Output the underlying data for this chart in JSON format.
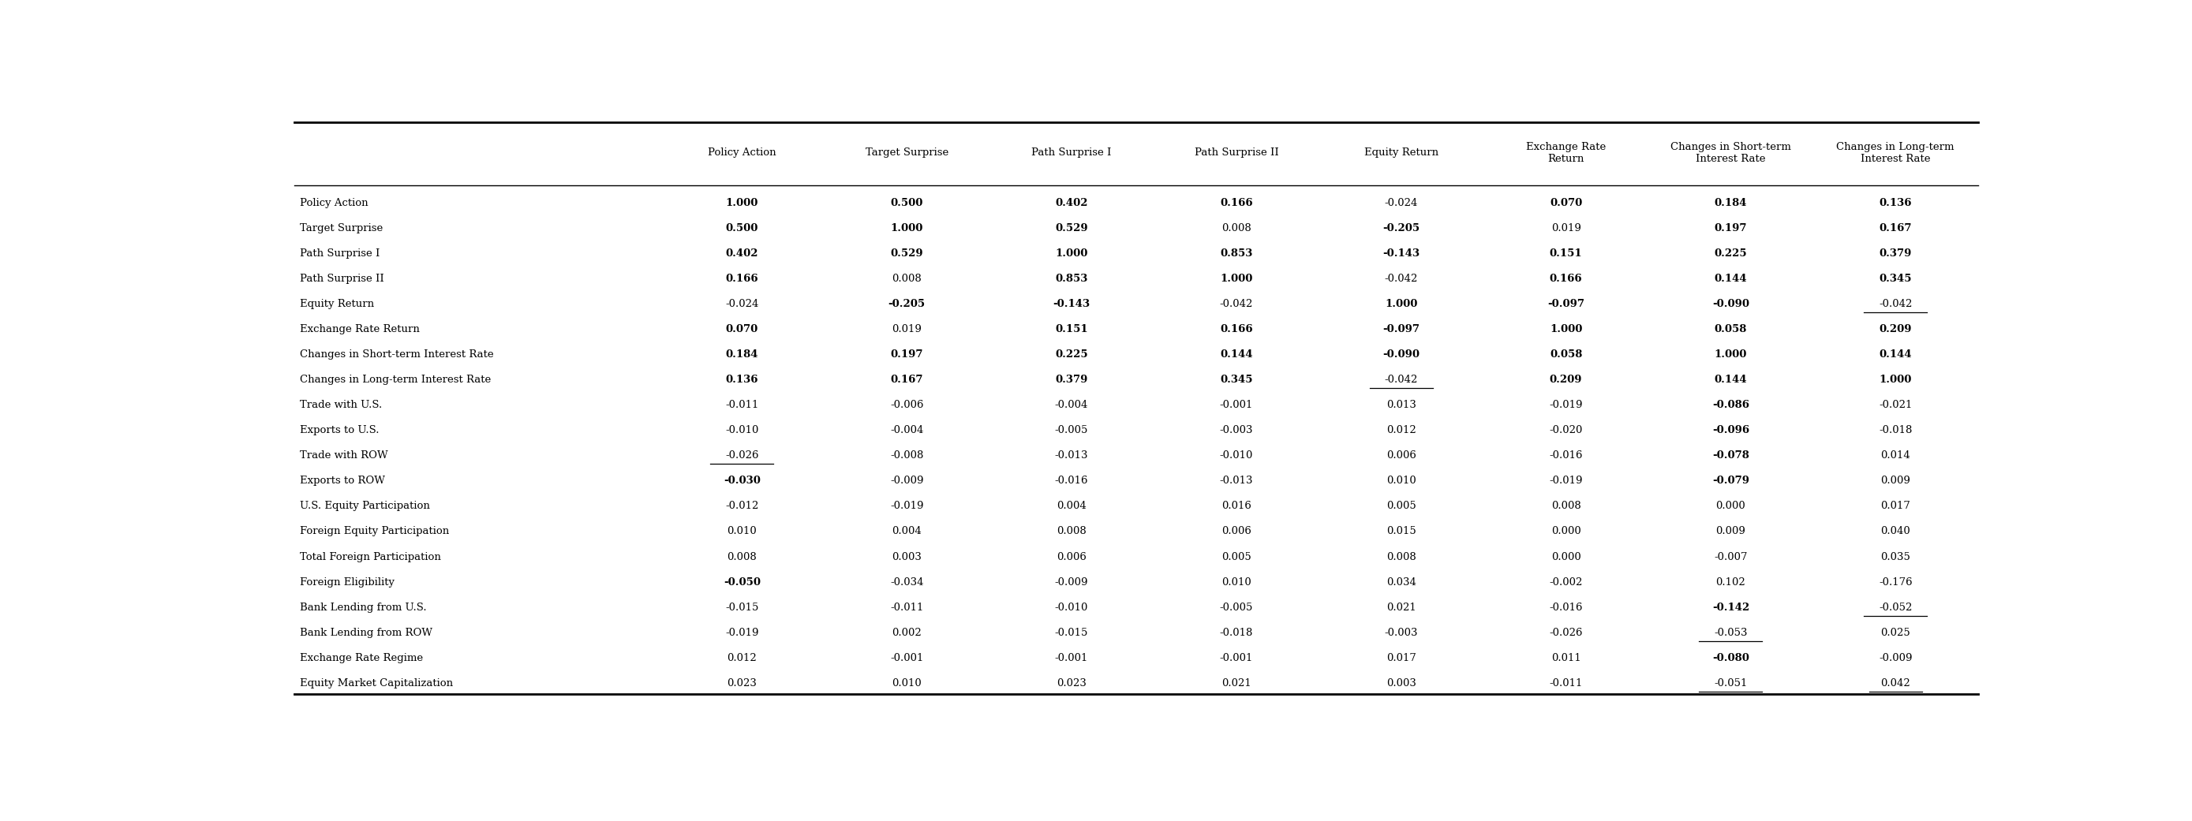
{
  "col_headers": [
    "Policy Action",
    "Target Surprise",
    "Path Surprise I",
    "Path Surprise II",
    "Equity Return",
    "Exchange Rate\nReturn",
    "Changes in Short-term\nInterest Rate",
    "Changes in Long-term\nInterest Rate"
  ],
  "row_labels": [
    "Policy Action",
    "Target Surprise",
    "Path Surprise I",
    "Path Surprise II",
    "Equity Return",
    "Exchange Rate Return",
    "Changes in Short-term Interest Rate",
    "Changes in Long-term Interest Rate",
    "Trade with U.S.",
    "Exports to U.S.",
    "Trade with ROW",
    "Exports to ROW",
    "U.S. Equity Participation",
    "Foreign Equity Participation",
    "Total Foreign Participation",
    "Foreign Eligibility",
    "Bank Lending from U.S.",
    "Bank Lending from ROW",
    "Exchange Rate Regime",
    "Equity Market Capitalization"
  ],
  "values": [
    [
      "1.000",
      "0.500",
      "0.402",
      "0.166",
      "-0.024",
      "0.070",
      "0.184",
      "0.136"
    ],
    [
      "0.500",
      "1.000",
      "0.529",
      "0.008",
      "-0.205",
      "0.019",
      "0.197",
      "0.167"
    ],
    [
      "0.402",
      "0.529",
      "1.000",
      "0.853",
      "-0.143",
      "0.151",
      "0.225",
      "0.379"
    ],
    [
      "0.166",
      "0.008",
      "0.853",
      "1.000",
      "-0.042",
      "0.166",
      "0.144",
      "0.345"
    ],
    [
      "-0.024",
      "-0.205",
      "-0.143",
      "-0.042",
      "1.000",
      "-0.097",
      "-0.090",
      "-0.042"
    ],
    [
      "0.070",
      "0.019",
      "0.151",
      "0.166",
      "-0.097",
      "1.000",
      "0.058",
      "0.209"
    ],
    [
      "0.184",
      "0.197",
      "0.225",
      "0.144",
      "-0.090",
      "0.058",
      "1.000",
      "0.144"
    ],
    [
      "0.136",
      "0.167",
      "0.379",
      "0.345",
      "-0.042",
      "0.209",
      "0.144",
      "1.000"
    ],
    [
      "-0.011",
      "-0.006",
      "-0.004",
      "-0.001",
      "0.013",
      "-0.019",
      "-0.086",
      "-0.021"
    ],
    [
      "-0.010",
      "-0.004",
      "-0.005",
      "-0.003",
      "0.012",
      "-0.020",
      "-0.096",
      "-0.018"
    ],
    [
      "-0.026",
      "-0.008",
      "-0.013",
      "-0.010",
      "0.006",
      "-0.016",
      "-0.078",
      "0.014"
    ],
    [
      "-0.030",
      "-0.009",
      "-0.016",
      "-0.013",
      "0.010",
      "-0.019",
      "-0.079",
      "0.009"
    ],
    [
      "-0.012",
      "-0.019",
      "0.004",
      "0.016",
      "0.005",
      "0.008",
      "0.000",
      "0.017"
    ],
    [
      "0.010",
      "0.004",
      "0.008",
      "0.006",
      "0.015",
      "0.000",
      "0.009",
      "0.040"
    ],
    [
      "0.008",
      "0.003",
      "0.006",
      "0.005",
      "0.008",
      "0.000",
      "-0.007",
      "0.035"
    ],
    [
      "-0.050",
      "-0.034",
      "-0.009",
      "0.010",
      "0.034",
      "-0.002",
      "0.102",
      "-0.176"
    ],
    [
      "-0.015",
      "-0.011",
      "-0.010",
      "-0.005",
      "0.021",
      "-0.016",
      "-0.142",
      "-0.052"
    ],
    [
      "-0.019",
      "0.002",
      "-0.015",
      "-0.018",
      "-0.003",
      "-0.026",
      "-0.053",
      "0.025"
    ],
    [
      "0.012",
      "-0.001",
      "-0.001",
      "-0.001",
      "0.017",
      "0.011",
      "-0.080",
      "-0.009"
    ],
    [
      "0.023",
      "0.010",
      "0.023",
      "0.021",
      "0.003",
      "-0.011",
      "-0.051",
      "0.042"
    ]
  ],
  "bold": [
    [
      true,
      true,
      true,
      true,
      false,
      true,
      true,
      true
    ],
    [
      true,
      true,
      true,
      false,
      true,
      false,
      true,
      true
    ],
    [
      true,
      true,
      true,
      true,
      true,
      true,
      true,
      true
    ],
    [
      true,
      false,
      true,
      true,
      false,
      true,
      true,
      true
    ],
    [
      false,
      true,
      true,
      false,
      true,
      true,
      true,
      false
    ],
    [
      true,
      false,
      true,
      true,
      true,
      true,
      true,
      true
    ],
    [
      true,
      true,
      true,
      true,
      true,
      true,
      true,
      true
    ],
    [
      true,
      true,
      true,
      true,
      false,
      true,
      true,
      true
    ],
    [
      false,
      false,
      false,
      false,
      false,
      false,
      true,
      false
    ],
    [
      false,
      false,
      false,
      false,
      false,
      false,
      true,
      false
    ],
    [
      false,
      false,
      false,
      false,
      false,
      false,
      true,
      false
    ],
    [
      true,
      false,
      false,
      false,
      false,
      false,
      true,
      false
    ],
    [
      false,
      false,
      false,
      false,
      false,
      false,
      false,
      false
    ],
    [
      false,
      false,
      false,
      false,
      false,
      false,
      false,
      false
    ],
    [
      false,
      false,
      false,
      false,
      false,
      false,
      false,
      false
    ],
    [
      true,
      false,
      false,
      false,
      false,
      false,
      false,
      false
    ],
    [
      false,
      false,
      false,
      false,
      false,
      false,
      true,
      false
    ],
    [
      false,
      false,
      false,
      false,
      false,
      false,
      false,
      false
    ],
    [
      false,
      false,
      false,
      false,
      false,
      false,
      true,
      false
    ],
    [
      false,
      false,
      false,
      false,
      false,
      false,
      false,
      false
    ]
  ],
  "underline": [
    [
      false,
      false,
      false,
      false,
      false,
      false,
      false,
      false
    ],
    [
      false,
      false,
      false,
      false,
      false,
      false,
      false,
      false
    ],
    [
      false,
      false,
      false,
      false,
      false,
      false,
      false,
      false
    ],
    [
      false,
      false,
      false,
      false,
      false,
      false,
      false,
      false
    ],
    [
      false,
      false,
      false,
      false,
      false,
      false,
      false,
      true
    ],
    [
      false,
      false,
      false,
      false,
      false,
      false,
      false,
      false
    ],
    [
      false,
      false,
      false,
      false,
      false,
      false,
      false,
      false
    ],
    [
      false,
      false,
      false,
      false,
      true,
      false,
      false,
      false
    ],
    [
      false,
      false,
      false,
      false,
      false,
      false,
      false,
      false
    ],
    [
      false,
      false,
      false,
      false,
      false,
      false,
      false,
      false
    ],
    [
      true,
      false,
      false,
      false,
      false,
      false,
      false,
      false
    ],
    [
      false,
      false,
      false,
      false,
      false,
      false,
      false,
      false
    ],
    [
      false,
      false,
      false,
      false,
      false,
      false,
      false,
      false
    ],
    [
      false,
      false,
      false,
      false,
      false,
      false,
      false,
      false
    ],
    [
      false,
      false,
      false,
      false,
      false,
      false,
      false,
      false
    ],
    [
      false,
      false,
      false,
      false,
      false,
      false,
      false,
      false
    ],
    [
      false,
      false,
      false,
      false,
      false,
      false,
      false,
      true
    ],
    [
      false,
      false,
      false,
      false,
      false,
      false,
      true,
      false
    ],
    [
      false,
      false,
      false,
      false,
      false,
      false,
      false,
      false
    ],
    [
      false,
      false,
      false,
      false,
      false,
      false,
      true,
      true
    ]
  ],
  "bg_color": "#ffffff",
  "font_size": 9.5,
  "header_font_size": 9.5
}
